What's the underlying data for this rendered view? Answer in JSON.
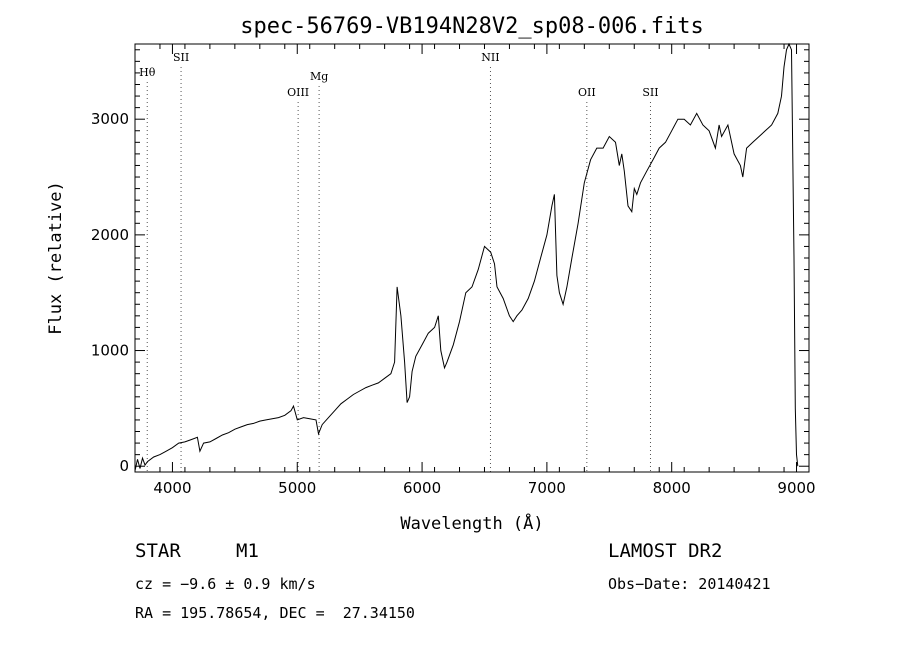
{
  "chart_data": {
    "type": "line",
    "title": "spec-56769-VB194N28V2_sp08-006.fits",
    "xlabel": "Wavelength (Å)",
    "ylabel": "Flux (relative)",
    "xlim": [
      3700,
      9100
    ],
    "ylim": [
      -50,
      3650
    ],
    "x_ticks": [
      4000,
      5000,
      6000,
      7000,
      8000,
      9000
    ],
    "y_ticks": [
      0,
      1000,
      2000,
      3000
    ],
    "line_color": "#000000",
    "lines": [
      {
        "label": "Hθ",
        "wavelength": 3798
      },
      {
        "label": "SII",
        "wavelength": 4069
      },
      {
        "label": "OIII",
        "wavelength": 5007
      },
      {
        "label": "Mg",
        "wavelength": 5175
      },
      {
        "label": "NII",
        "wavelength": 6548
      },
      {
        "label": "OII",
        "wavelength": 7320
      },
      {
        "label": "SII",
        "wavelength": 7830
      }
    ],
    "series": [
      {
        "name": "flux",
        "x": [
          3700,
          3720,
          3740,
          3760,
          3780,
          3800,
          3850,
          3900,
          3950,
          4000,
          4050,
          4100,
          4150,
          4200,
          4220,
          4250,
          4300,
          4350,
          4400,
          4450,
          4500,
          4550,
          4600,
          4650,
          4700,
          4750,
          4800,
          4850,
          4900,
          4950,
          4970,
          5000,
          5050,
          5100,
          5150,
          5170,
          5200,
          5250,
          5300,
          5350,
          5400,
          5450,
          5500,
          5550,
          5600,
          5650,
          5700,
          5750,
          5780,
          5800,
          5830,
          5860,
          5880,
          5900,
          5920,
          5950,
          6000,
          6050,
          6100,
          6130,
          6150,
          6180,
          6200,
          6250,
          6300,
          6350,
          6400,
          6450,
          6500,
          6550,
          6580,
          6600,
          6650,
          6700,
          6730,
          6760,
          6800,
          6850,
          6900,
          6950,
          7000,
          7040,
          7060,
          7080,
          7100,
          7130,
          7160,
          7200,
          7250,
          7300,
          7350,
          7400,
          7450,
          7500,
          7550,
          7580,
          7600,
          7620,
          7650,
          7680,
          7700,
          7720,
          7750,
          7800,
          7850,
          7900,
          7950,
          8000,
          8050,
          8100,
          8150,
          8200,
          8250,
          8300,
          8350,
          8380,
          8400,
          8450,
          8500,
          8550,
          8570,
          8600,
          8650,
          8700,
          8750,
          8800,
          8850,
          8880,
          8900,
          8920,
          8940,
          8960,
          8980,
          8990,
          9000,
          9010
        ],
        "y": [
          -40,
          60,
          -20,
          70,
          10,
          40,
          80,
          100,
          130,
          160,
          200,
          210,
          230,
          250,
          130,
          200,
          210,
          240,
          270,
          290,
          320,
          340,
          360,
          370,
          390,
          400,
          410,
          420,
          440,
          480,
          520,
          400,
          420,
          410,
          400,
          280,
          360,
          420,
          480,
          540,
          580,
          620,
          650,
          680,
          700,
          720,
          760,
          800,
          900,
          1550,
          1300,
          900,
          550,
          600,
          820,
          950,
          1050,
          1150,
          1200,
          1300,
          1000,
          850,
          900,
          1050,
          1250,
          1500,
          1550,
          1700,
          1900,
          1850,
          1750,
          1550,
          1450,
          1300,
          1250,
          1300,
          1350,
          1450,
          1600,
          1800,
          2000,
          2250,
          2350,
          1650,
          1500,
          1400,
          1550,
          1800,
          2100,
          2450,
          2650,
          2750,
          2750,
          2850,
          2800,
          2600,
          2700,
          2550,
          2250,
          2200,
          2400,
          2350,
          2450,
          2550,
          2650,
          2750,
          2800,
          2900,
          3000,
          3000,
          2950,
          3050,
          2950,
          2900,
          2750,
          2950,
          2850,
          2950,
          2700,
          2600,
          2500,
          2750,
          2800,
          2850,
          2900,
          2950,
          3050,
          3200,
          3450,
          3600,
          3650,
          3600,
          1800,
          500,
          100,
          0
        ]
      }
    ]
  },
  "info": {
    "class_label": "STAR",
    "subclass": "M1",
    "survey": "LAMOST DR2",
    "redshift": "cz = −9.6 ± 0.9 km/s",
    "obs_date": "Obs−Date: 20140421",
    "coords": "RA = 195.78654, DEC =  27.34150"
  }
}
